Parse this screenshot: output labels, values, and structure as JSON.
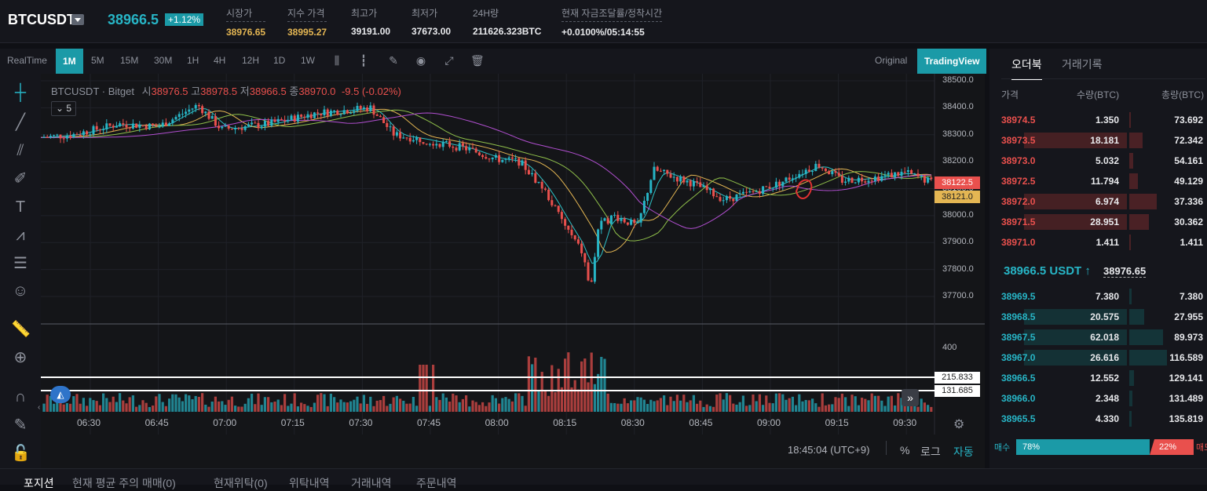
{
  "header": {
    "symbol": "BTCUSDT",
    "last_price": "38966.5",
    "change_pct": "+1.12%",
    "stats": [
      {
        "label": "시장가",
        "value": "38976.65"
      },
      {
        "label": "지수 가격",
        "value": "38995.27"
      },
      {
        "label": "최고가",
        "value": "39191.00"
      },
      {
        "label": "최저가",
        "value": "37673.00"
      },
      {
        "label": "24H량",
        "value": "211626.323BTC"
      },
      {
        "label": "현재 자금조달률/정착시간",
        "value": "+0.0100%/05:14:55"
      }
    ]
  },
  "toolbar": {
    "realtime": "RealTime",
    "intervals": [
      "1M",
      "5M",
      "15M",
      "30M",
      "1H",
      "4H",
      "12H",
      "1D",
      "1W"
    ],
    "active_interval": "1M",
    "original": "Original",
    "tradingview": "TradingView"
  },
  "chart": {
    "legend_symbol": "BTCUSDT · Bitget",
    "legend_open_label": "시",
    "legend_open": "38976.5",
    "legend_high_label": "고",
    "legend_high": "38978.5",
    "legend_low_label": "저",
    "legend_low": "38966.5",
    "legend_close_label": "종",
    "legend_close": "38970.0",
    "legend_change": "-9.5 (-0.02%)",
    "indicator_badge": "5",
    "price_axis": [
      "38500.0",
      "38400.0",
      "38300.0",
      "38200.0",
      "38100.0",
      "38000.0",
      "37900.0",
      "37800.0",
      "37700.0"
    ],
    "price_tag_red": "38122.5",
    "price_tag_yellow": "38121.0",
    "volume_axis": [
      "400"
    ],
    "volume_tag_1": "215.833",
    "volume_tag_2": "131.685",
    "time_axis": [
      "06:30",
      "06:45",
      "07:00",
      "07:15",
      "07:30",
      "07:45",
      "08:00",
      "08:15",
      "08:30",
      "08:45",
      "09:00",
      "09:15",
      "09:30"
    ],
    "clock": "18:45:04 (UTC+9)",
    "percent": "%",
    "log": "로그",
    "auto": "자동",
    "colors": {
      "up": "#27b5c6",
      "down": "#e9504d",
      "ma1": "#2ec1c6",
      "ma2": "#e4b653",
      "ma3": "#8fbf4a",
      "ma4": "#b14fd0"
    }
  },
  "orderbook": {
    "tabs": [
      "오더북",
      "거래기록"
    ],
    "headers": [
      "가격",
      "수량(BTC)",
      "총량(BTC)"
    ],
    "asks": [
      {
        "price": "38974.5",
        "qty": "1.350",
        "total": "73.692",
        "depth": 0.04
      },
      {
        "price": "38973.5",
        "qty": "18.181",
        "total": "72.342",
        "depth": 0.33
      },
      {
        "price": "38973.0",
        "qty": "5.032",
        "total": "54.161",
        "depth": 0.1
      },
      {
        "price": "38972.5",
        "qty": "11.794",
        "total": "49.129",
        "depth": 0.21
      },
      {
        "price": "38972.0",
        "qty": "6.974",
        "total": "37.336",
        "depth": 0.7
      },
      {
        "price": "38971.5",
        "qty": "28.951",
        "total": "30.362",
        "depth": 0.5
      },
      {
        "price": "38971.0",
        "qty": "1.411",
        "total": "1.411",
        "depth": 0.03
      }
    ],
    "mid_price": "38966.5 USDT ↑",
    "mark_price": "38976.65",
    "bids": [
      {
        "price": "38969.5",
        "qty": "7.380",
        "total": "7.380",
        "depth": 0.06
      },
      {
        "price": "38968.5",
        "qty": "20.575",
        "total": "27.955",
        "depth": 0.38
      },
      {
        "price": "38967.5",
        "qty": "62.018",
        "total": "89.973",
        "depth": 0.85
      },
      {
        "price": "38967.0",
        "qty": "26.616",
        "total": "116.589",
        "depth": 0.96
      },
      {
        "price": "38966.5",
        "qty": "12.552",
        "total": "129.141",
        "depth": 0.12
      },
      {
        "price": "38966.0",
        "qty": "2.348",
        "total": "131.489",
        "depth": 0.08
      },
      {
        "price": "38965.5",
        "qty": "4.330",
        "total": "135.819",
        "depth": 0.06
      }
    ],
    "buy_label": "매수",
    "buy_pct": "78%",
    "sell_pct": "22%",
    "sell_label": "매도",
    "buy_ratio": 0.78
  },
  "bottom_tabs": [
    "포지션",
    "현재 평균 주의 매매(0)",
    "현재위탁(0)",
    "위탁내역",
    "거래내역",
    "주문내역"
  ]
}
